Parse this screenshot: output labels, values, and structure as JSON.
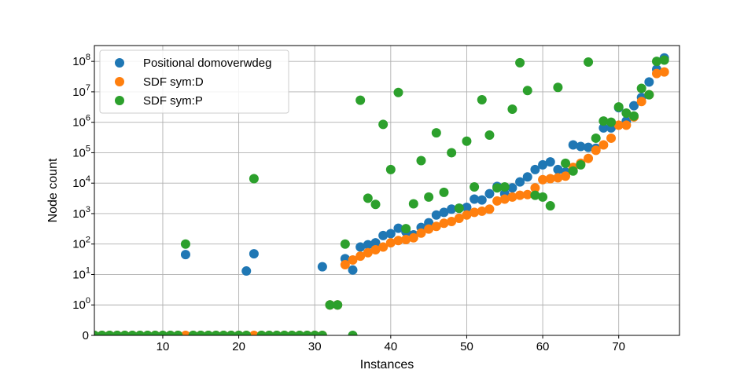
{
  "chart_data": {
    "type": "scatter",
    "xlabel": "Instances",
    "ylabel": "Node count",
    "xlim": [
      1,
      78
    ],
    "y_scale": "symlog",
    "ylim": [
      0,
      300000000
    ],
    "grid": true,
    "legend_position": "top-left",
    "x_ticks": [
      10,
      20,
      30,
      40,
      50,
      60,
      70
    ],
    "y_ticks": [
      {
        "value": 0,
        "base": "0",
        "exp": ""
      },
      {
        "value": 1,
        "base": "10",
        "exp": "0"
      },
      {
        "value": 10,
        "base": "10",
        "exp": "1"
      },
      {
        "value": 100,
        "base": "10",
        "exp": "2"
      },
      {
        "value": 1000,
        "base": "10",
        "exp": "3"
      },
      {
        "value": 10000,
        "base": "10",
        "exp": "4"
      },
      {
        "value": 100000,
        "base": "10",
        "exp": "5"
      },
      {
        "value": 1000000,
        "base": "10",
        "exp": "6"
      },
      {
        "value": 10000000,
        "base": "10",
        "exp": "7"
      },
      {
        "value": 100000000,
        "base": "10",
        "exp": "8"
      }
    ],
    "series": [
      {
        "name": "Positional domoverwdeg",
        "color": "#1f77b4",
        "points": [
          [
            1,
            0
          ],
          [
            2,
            0
          ],
          [
            3,
            0
          ],
          [
            4,
            0
          ],
          [
            5,
            0
          ],
          [
            6,
            0
          ],
          [
            7,
            0
          ],
          [
            8,
            0
          ],
          [
            9,
            0
          ],
          [
            10,
            0
          ],
          [
            11,
            0
          ],
          [
            12,
            0
          ],
          [
            13,
            45
          ],
          [
            14,
            0
          ],
          [
            15,
            0
          ],
          [
            16,
            0
          ],
          [
            17,
            0
          ],
          [
            18,
            0
          ],
          [
            19,
            0
          ],
          [
            20,
            0
          ],
          [
            21,
            13
          ],
          [
            22,
            48
          ],
          [
            23,
            0
          ],
          [
            24,
            0
          ],
          [
            25,
            0
          ],
          [
            26,
            0
          ],
          [
            27,
            0
          ],
          [
            28,
            0
          ],
          [
            29,
            0
          ],
          [
            30,
            0
          ],
          [
            31,
            18
          ],
          [
            32,
            1
          ],
          [
            33,
            1
          ],
          [
            34,
            33
          ],
          [
            35,
            14
          ],
          [
            36,
            80
          ],
          [
            37,
            95
          ],
          [
            38,
            110
          ],
          [
            39,
            190
          ],
          [
            40,
            220
          ],
          [
            41,
            330
          ],
          [
            42,
            250
          ],
          [
            43,
            200
          ],
          [
            44,
            350
          ],
          [
            45,
            500
          ],
          [
            46,
            900
          ],
          [
            47,
            1100
          ],
          [
            48,
            1400
          ],
          [
            49,
            1500
          ],
          [
            50,
            1600
          ],
          [
            51,
            3000
          ],
          [
            52,
            2800
          ],
          [
            53,
            4500
          ],
          [
            54,
            7800
          ],
          [
            55,
            4500
          ],
          [
            56,
            7000
          ],
          [
            57,
            11000
          ],
          [
            58,
            16000
          ],
          [
            59,
            28000
          ],
          [
            60,
            40000
          ],
          [
            61,
            50000
          ],
          [
            62,
            28000
          ],
          [
            63,
            23000
          ],
          [
            64,
            180000
          ],
          [
            65,
            160000
          ],
          [
            66,
            150000
          ],
          [
            67,
            140000
          ],
          [
            68,
            650000
          ],
          [
            69,
            650000
          ],
          [
            70,
            3000000
          ],
          [
            71,
            1100000
          ],
          [
            72,
            3500000
          ],
          [
            73,
            6500000
          ],
          [
            74,
            21000000
          ],
          [
            75,
            55000000
          ],
          [
            76,
            130000000
          ]
        ]
      },
      {
        "name": "SDF sym:D",
        "color": "#ff7f0e",
        "points": [
          [
            1,
            0
          ],
          [
            2,
            0
          ],
          [
            3,
            0
          ],
          [
            4,
            0
          ],
          [
            5,
            0
          ],
          [
            6,
            0
          ],
          [
            7,
            0
          ],
          [
            8,
            0
          ],
          [
            9,
            0
          ],
          [
            10,
            0
          ],
          [
            11,
            0
          ],
          [
            12,
            0
          ],
          [
            13,
            0
          ],
          [
            14,
            0
          ],
          [
            15,
            0
          ],
          [
            16,
            0
          ],
          [
            17,
            0
          ],
          [
            18,
            0
          ],
          [
            19,
            0
          ],
          [
            20,
            0
          ],
          [
            21,
            0
          ],
          [
            22,
            0
          ],
          [
            23,
            0
          ],
          [
            24,
            0
          ],
          [
            25,
            0
          ],
          [
            26,
            0
          ],
          [
            27,
            0
          ],
          [
            28,
            0
          ],
          [
            29,
            0
          ],
          [
            30,
            0
          ],
          [
            31,
            0
          ],
          [
            32,
            1
          ],
          [
            33,
            1
          ],
          [
            34,
            21
          ],
          [
            35,
            30
          ],
          [
            36,
            40
          ],
          [
            37,
            52
          ],
          [
            38,
            65
          ],
          [
            39,
            80
          ],
          [
            40,
            110
          ],
          [
            41,
            130
          ],
          [
            42,
            140
          ],
          [
            43,
            160
          ],
          [
            44,
            230
          ],
          [
            45,
            310
          ],
          [
            46,
            380
          ],
          [
            47,
            480
          ],
          [
            48,
            550
          ],
          [
            49,
            700
          ],
          [
            50,
            900
          ],
          [
            51,
            1100
          ],
          [
            52,
            1200
          ],
          [
            53,
            1400
          ],
          [
            54,
            2600
          ],
          [
            55,
            3000
          ],
          [
            56,
            3500
          ],
          [
            57,
            4000
          ],
          [
            58,
            4200
          ],
          [
            59,
            7000
          ],
          [
            60,
            13000
          ],
          [
            61,
            14000
          ],
          [
            62,
            15000
          ],
          [
            63,
            17000
          ],
          [
            64,
            33000
          ],
          [
            65,
            45000
          ],
          [
            66,
            65000
          ],
          [
            67,
            120000
          ],
          [
            68,
            180000
          ],
          [
            69,
            300000
          ],
          [
            70,
            800000
          ],
          [
            71,
            800000
          ],
          [
            72,
            1500000
          ],
          [
            73,
            4800000
          ],
          [
            74,
            8000000
          ],
          [
            75,
            40000000
          ],
          [
            76,
            45000000
          ]
        ]
      },
      {
        "name": "SDF sym:P",
        "color": "#2ca02c",
        "points": [
          [
            1,
            0
          ],
          [
            2,
            0
          ],
          [
            3,
            0
          ],
          [
            4,
            0
          ],
          [
            5,
            0
          ],
          [
            6,
            0
          ],
          [
            7,
            0
          ],
          [
            8,
            0
          ],
          [
            9,
            0
          ],
          [
            10,
            0
          ],
          [
            11,
            0
          ],
          [
            12,
            0
          ],
          [
            13,
            100
          ],
          [
            14,
            0
          ],
          [
            15,
            0
          ],
          [
            16,
            0
          ],
          [
            17,
            0
          ],
          [
            18,
            0
          ],
          [
            19,
            0
          ],
          [
            20,
            0
          ],
          [
            21,
            0
          ],
          [
            22,
            14000
          ],
          [
            23,
            0
          ],
          [
            24,
            0
          ],
          [
            25,
            0
          ],
          [
            26,
            0
          ],
          [
            27,
            0
          ],
          [
            28,
            0
          ],
          [
            29,
            0
          ],
          [
            30,
            0
          ],
          [
            31,
            0
          ],
          [
            32,
            1
          ],
          [
            33,
            1
          ],
          [
            34,
            100
          ],
          [
            35,
            0
          ],
          [
            36,
            5300000
          ],
          [
            37,
            3200
          ],
          [
            38,
            2000
          ],
          [
            39,
            850000
          ],
          [
            40,
            28000
          ],
          [
            41,
            9500000
          ],
          [
            42,
            320
          ],
          [
            43,
            2100
          ],
          [
            44,
            55000
          ],
          [
            45,
            3500
          ],
          [
            46,
            450000
          ],
          [
            47,
            5000
          ],
          [
            48,
            100000
          ],
          [
            49,
            1500
          ],
          [
            50,
            240000
          ],
          [
            51,
            7500
          ],
          [
            52,
            5500000
          ],
          [
            53,
            380000
          ],
          [
            54,
            7000
          ],
          [
            55,
            7500
          ],
          [
            56,
            2700000
          ],
          [
            57,
            90000000
          ],
          [
            58,
            11000000
          ],
          [
            59,
            4000
          ],
          [
            60,
            3500
          ],
          [
            61,
            1800
          ],
          [
            62,
            14000000
          ],
          [
            63,
            45000
          ],
          [
            64,
            25000
          ],
          [
            65,
            40000
          ],
          [
            66,
            95000000
          ],
          [
            67,
            300000
          ],
          [
            68,
            1100000
          ],
          [
            69,
            1000000
          ],
          [
            70,
            3200000
          ],
          [
            71,
            2000000
          ],
          [
            72,
            1600000
          ],
          [
            73,
            13000000
          ],
          [
            74,
            8000000
          ],
          [
            75,
            100000000
          ],
          [
            76,
            110000000
          ]
        ]
      }
    ]
  }
}
